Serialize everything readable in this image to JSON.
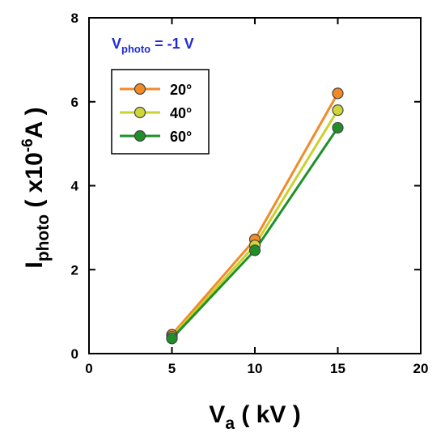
{
  "chart_data": {
    "type": "line",
    "title": "",
    "annotation": {
      "main": "V",
      "sub": "photo",
      "rest": " = -1 V"
    },
    "xlabel": {
      "main": "V",
      "sub": "a",
      "rest": " ( kV )"
    },
    "ylabel": {
      "main": "I",
      "sub": "photo",
      "rest1": " ( x10",
      "sup": "-6",
      "rest2": "A )"
    },
    "xlim": [
      0,
      20
    ],
    "ylim": [
      0,
      8
    ],
    "xticks": [
      0,
      5,
      10,
      15,
      20
    ],
    "yticks": [
      0,
      2,
      4,
      6,
      8
    ],
    "grid": false,
    "legend_position": "top-left",
    "series": [
      {
        "name": "20°",
        "x": [
          5,
          10,
          15
        ],
        "y": [
          0.45,
          2.72,
          6.2
        ],
        "color": "#f28a28",
        "marker_fill": "#f28a28"
      },
      {
        "name": "40°",
        "x": [
          5,
          10,
          15
        ],
        "y": [
          0.4,
          2.58,
          5.8
        ],
        "color": "#c9d22a",
        "marker_fill": "#cfd63a"
      },
      {
        "name": "60°",
        "x": [
          5,
          10,
          15
        ],
        "y": [
          0.36,
          2.46,
          5.38
        ],
        "color": "#1f8f2a",
        "marker_fill": "#1f8f2a"
      }
    ]
  }
}
